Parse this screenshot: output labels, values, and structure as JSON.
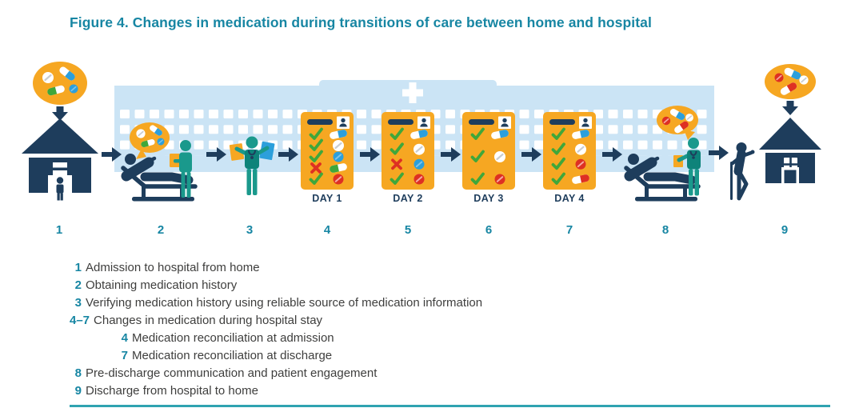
{
  "title": "Figure 4. Changes in medication during transitions of care between home and hospital",
  "colors": {
    "accent_teal": "#1786A3",
    "navy": "#1E3D5C",
    "orange": "#F6A722",
    "hospital_light_blue": "#CBE4F5",
    "check_green": "#3FA73B",
    "alert_red": "#DE3023",
    "pill_blue": "#2C9FDB",
    "person_teal": "#1A998C",
    "legend_text": "#3E3E3D"
  },
  "step_numbers": [
    "1",
    "2",
    "3",
    "4",
    "5",
    "6",
    "7",
    "8",
    "9"
  ],
  "day_cards": [
    {
      "label": "DAY 1",
      "rows": [
        {
          "mark": "check",
          "pill": "capsule-blue"
        },
        {
          "mark": "check",
          "pill": "round-white"
        },
        {
          "mark": "check",
          "pill": "round-blue"
        },
        {
          "mark": "x",
          "pill": "capsule-green"
        },
        {
          "mark": "check",
          "pill": "round-red"
        }
      ]
    },
    {
      "label": "DAY 2",
      "rows": [
        {
          "mark": "check",
          "pill": "capsule-blue"
        },
        {
          "mark": "check",
          "pill": "round-white"
        },
        {
          "mark": "x",
          "pill": "round-blue"
        },
        {
          "mark": "check",
          "pill": "round-red"
        }
      ]
    },
    {
      "label": "DAY 3",
      "rows": [
        {
          "mark": "check",
          "pill": "capsule-blue"
        },
        {
          "mark": "check",
          "pill": "round-white"
        },
        {
          "mark": "check",
          "pill": "round-red"
        }
      ]
    },
    {
      "label": "DAY 4",
      "rows": [
        {
          "mark": "check",
          "pill": "capsule-blue"
        },
        {
          "mark": "check",
          "pill": "round-white"
        },
        {
          "mark": "check",
          "pill": "round-red"
        },
        {
          "mark": "check",
          "pill": "capsule-red"
        }
      ]
    }
  ],
  "legend": {
    "items": [
      {
        "num": "1",
        "text": "Admission to hospital from home",
        "indent": 0
      },
      {
        "num": "2",
        "text": "Obtaining medication history",
        "indent": 0
      },
      {
        "num": "3",
        "text": "Verifying medication history using reliable source of medication information",
        "indent": 0
      },
      {
        "num": "4–7",
        "text": "Changes in medication during hospital stay",
        "indent": 0
      },
      {
        "num": "4",
        "text": "Medication reconciliation at admission",
        "indent": 1
      },
      {
        "num": "7",
        "text": "Medication reconciliation at discharge",
        "indent": 1
      },
      {
        "num": "8",
        "text": "Pre-discharge communication and patient engagement",
        "indent": 0
      },
      {
        "num": "9",
        "text": "Discharge from hospital to home",
        "indent": 0
      }
    ]
  }
}
